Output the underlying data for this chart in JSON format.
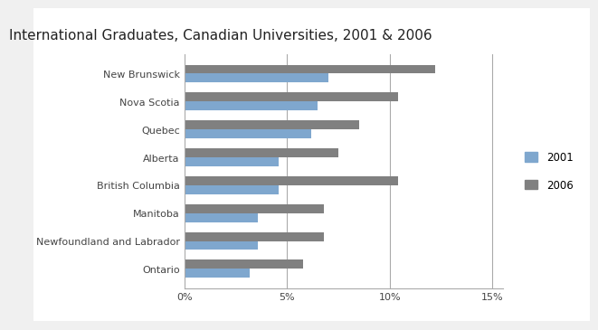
{
  "title": "International Graduates, Canadian Universities, 2001 & 2006",
  "categories": [
    "New Brunswick",
    "Nova Scotia",
    "Quebec",
    "Alberta",
    "British Columbia",
    "Manitoba",
    "Newfoundland and Labrador",
    "Ontario"
  ],
  "values_2001": [
    0.07,
    0.065,
    0.062,
    0.046,
    0.046,
    0.036,
    0.036,
    0.032
  ],
  "values_2006": [
    0.122,
    0.104,
    0.085,
    0.075,
    0.104,
    0.068,
    0.068,
    0.058
  ],
  "color_2001": "#7fa7ce",
  "color_2006": "#808080",
  "xlim": [
    0,
    0.155
  ],
  "xticks": [
    0.0,
    0.05,
    0.1,
    0.15
  ],
  "xticklabels": [
    "0%",
    "5%",
    "10%",
    "15%"
  ],
  "legend_2001": "2001",
  "legend_2006": "2006",
  "background_color": "#ffffff",
  "figure_background": "#f0f0f0",
  "title_fontsize": 11,
  "tick_fontsize": 8,
  "bar_height": 0.32
}
